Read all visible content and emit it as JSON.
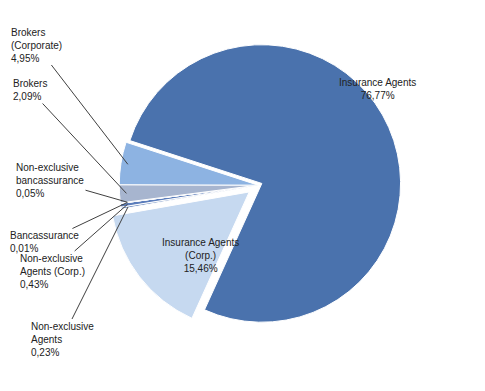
{
  "chart_data": {
    "type": "pie",
    "categories": [
      "Insurance Agents",
      "Insurance Agents (Corp.)",
      "Non-exclusive Agents",
      "Non-exclusive Agents (Corp.)",
      "Bancassurance",
      "Non-exclusive bancassurance",
      "Brokers",
      "Brokers (Corporate)"
    ],
    "values": [
      76.77,
      15.46,
      0.23,
      0.43,
      0.01,
      0.05,
      2.09,
      4.95
    ],
    "value_labels": [
      "76,77%",
      "15,46%",
      "0,23%",
      "0,43%",
      "0,01%",
      "0,05%",
      "2,09%",
      "4,95%"
    ],
    "colors": [
      "#4a72ad",
      "#c6d9f0",
      "#6d8cc0",
      "#5b7dbb",
      "#7fa3d9",
      "#4f6fa8",
      "#a7b5cf",
      "#8db3e2"
    ],
    "data_labels": true
  }
}
